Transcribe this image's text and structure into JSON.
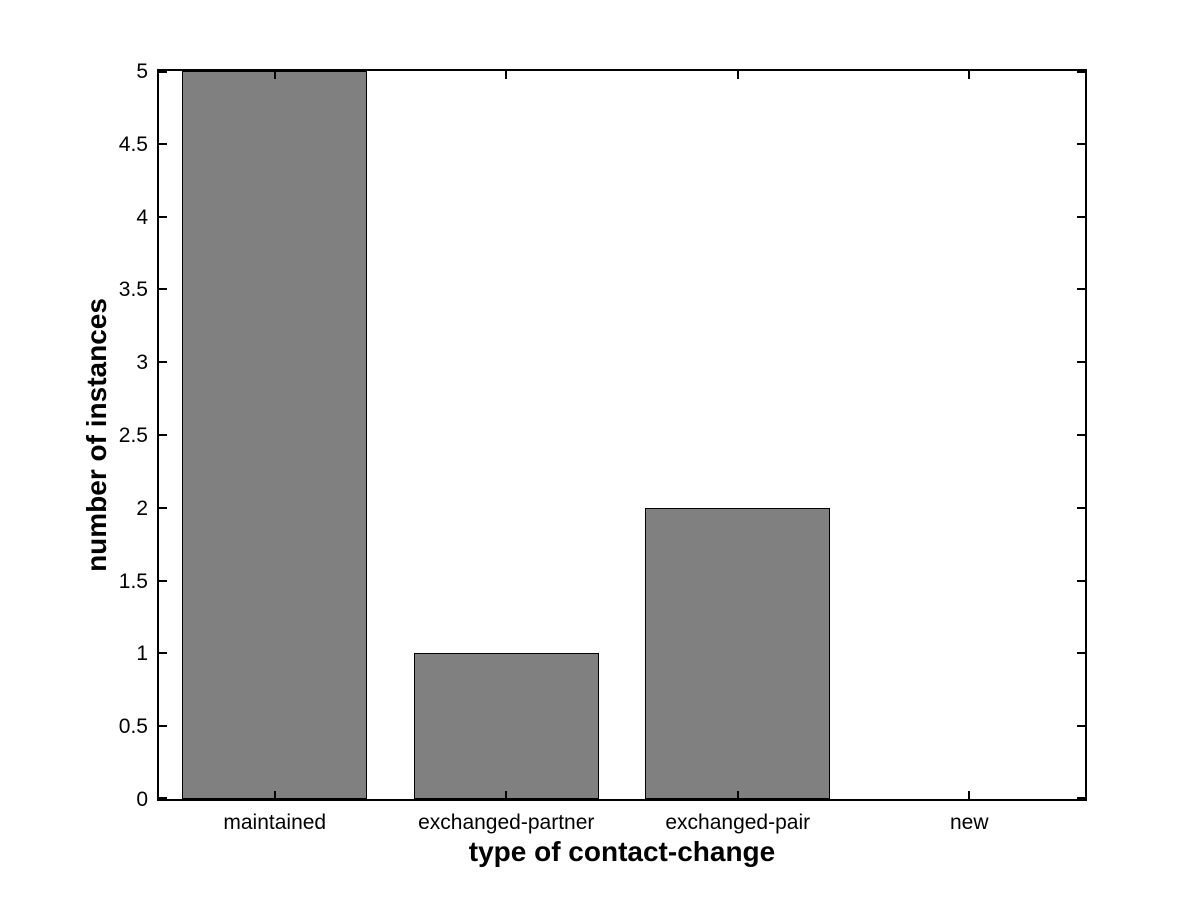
{
  "chart_data": {
    "type": "bar",
    "title": "",
    "xlabel": "type of contact-change",
    "ylabel": "number of instances",
    "categories": [
      "maintained",
      "exchanged-partner",
      "exchanged-pair",
      "new"
    ],
    "values": [
      5,
      1,
      2,
      0
    ],
    "ylim": [
      0,
      5
    ],
    "yticks": [
      0,
      0.5,
      1,
      1.5,
      2,
      2.5,
      3,
      3.5,
      4,
      4.5,
      5
    ],
    "ytick_labels": [
      "0",
      "0.5",
      "1",
      "1.5",
      "2",
      "2.5",
      "3",
      "3.5",
      "4",
      "4.5",
      "5"
    ],
    "bar_width_fraction": 0.8,
    "grid": false,
    "legend_position": "none",
    "colors": {
      "bar_fill": "#808080",
      "bar_edge": "#000000",
      "axis": "#000000",
      "background": "#ffffff",
      "text": "#000000"
    }
  }
}
